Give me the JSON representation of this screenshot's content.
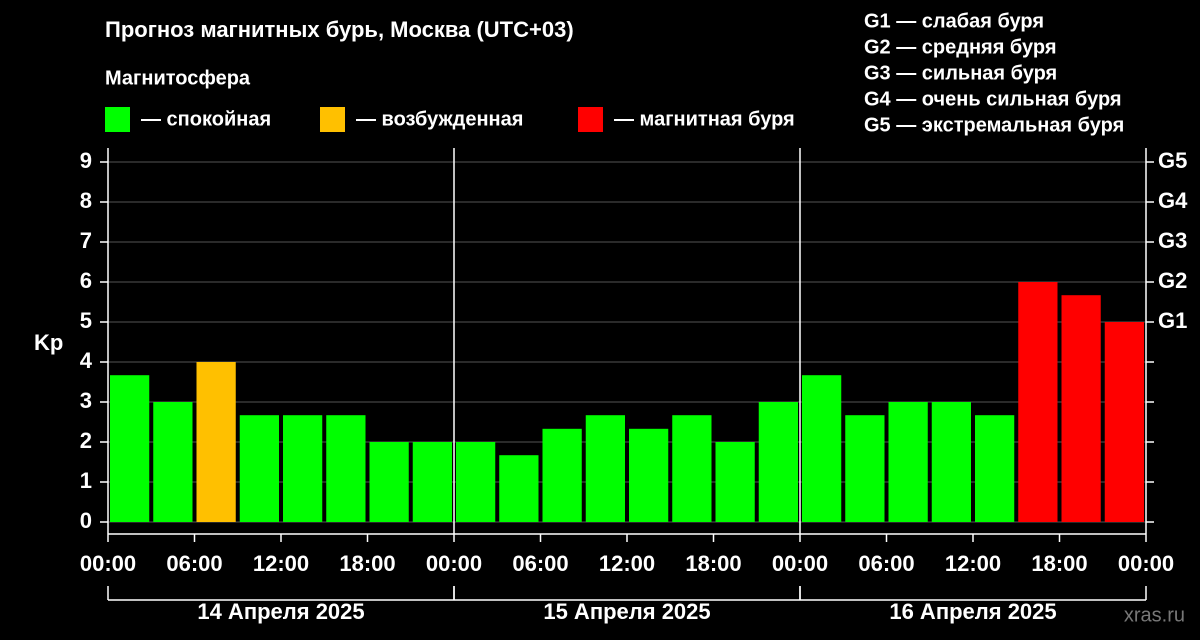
{
  "chart_data": {
    "type": "bar",
    "title": "Прогноз магнитных бурь, Москва (UTC+03)",
    "legend_title": "Магнитосфера",
    "legend": [
      {
        "label": "— спокойная",
        "color": "#00ff00"
      },
      {
        "label": "— возбужденная",
        "color": "#ffc000"
      },
      {
        "label": "— магнитная буря",
        "color": "#ff0000"
      }
    ],
    "storm_scale": [
      "G1 — слабая буря",
      "G2 — средняя буря",
      "G3 — сильная буря",
      "G4 — очень сильная буря",
      "G5 — экстремальная буря"
    ],
    "ylabel": "Kp",
    "ylim": [
      -0.3,
      9.35
    ],
    "yticks": [
      0,
      1,
      2,
      3,
      4,
      5,
      6,
      7,
      8,
      9
    ],
    "y2ticks": [
      {
        "value": 5,
        "label": "G1"
      },
      {
        "value": 6,
        "label": "G2"
      },
      {
        "value": 7,
        "label": "G3"
      },
      {
        "value": 8,
        "label": "G4"
      },
      {
        "value": 9,
        "label": "G5"
      }
    ],
    "xlim": [
      0,
      72
    ],
    "xticks": [
      {
        "value": 0,
        "label": "00:00"
      },
      {
        "value": 6,
        "label": "06:00"
      },
      {
        "value": 12,
        "label": "12:00"
      },
      {
        "value": 18,
        "label": "18:00"
      },
      {
        "value": 24,
        "label": "00:00"
      },
      {
        "value": 30,
        "label": "06:00"
      },
      {
        "value": 36,
        "label": "12:00"
      },
      {
        "value": 42,
        "label": "18:00"
      },
      {
        "value": 48,
        "label": "00:00"
      },
      {
        "value": 54,
        "label": "06:00"
      },
      {
        "value": 60,
        "label": "12:00"
      },
      {
        "value": 66,
        "label": "18:00"
      },
      {
        "value": 72,
        "label": "00:00"
      }
    ],
    "days": [
      {
        "label": "14 Апреля 2025",
        "start": 0,
        "end": 24
      },
      {
        "label": "15 Апреля 2025",
        "start": 24,
        "end": 48
      },
      {
        "label": "16 Апреля 2025",
        "start": 48,
        "end": 72
      }
    ],
    "x": [
      0,
      3,
      6,
      9,
      12,
      15,
      18,
      21,
      24,
      27,
      30,
      33,
      36,
      39,
      42,
      45,
      48,
      51,
      54,
      57,
      60,
      63,
      66,
      69
    ],
    "values": [
      3.67,
      3,
      4,
      2.67,
      2.67,
      2.67,
      2,
      2,
      2,
      1.67,
      2.33,
      2.67,
      2.33,
      2.67,
      2,
      3,
      3.67,
      2.67,
      3,
      3,
      2.67,
      6,
      5.67,
      5
    ],
    "colors": [
      "#00ff00",
      "#00ff00",
      "#ffc000",
      "#00ff00",
      "#00ff00",
      "#00ff00",
      "#00ff00",
      "#00ff00",
      "#00ff00",
      "#00ff00",
      "#00ff00",
      "#00ff00",
      "#00ff00",
      "#00ff00",
      "#00ff00",
      "#00ff00",
      "#00ff00",
      "#00ff00",
      "#00ff00",
      "#00ff00",
      "#00ff00",
      "#ff0000",
      "#ff0000",
      "#ff0000"
    ],
    "grid": true,
    "source": "xras.ru"
  }
}
